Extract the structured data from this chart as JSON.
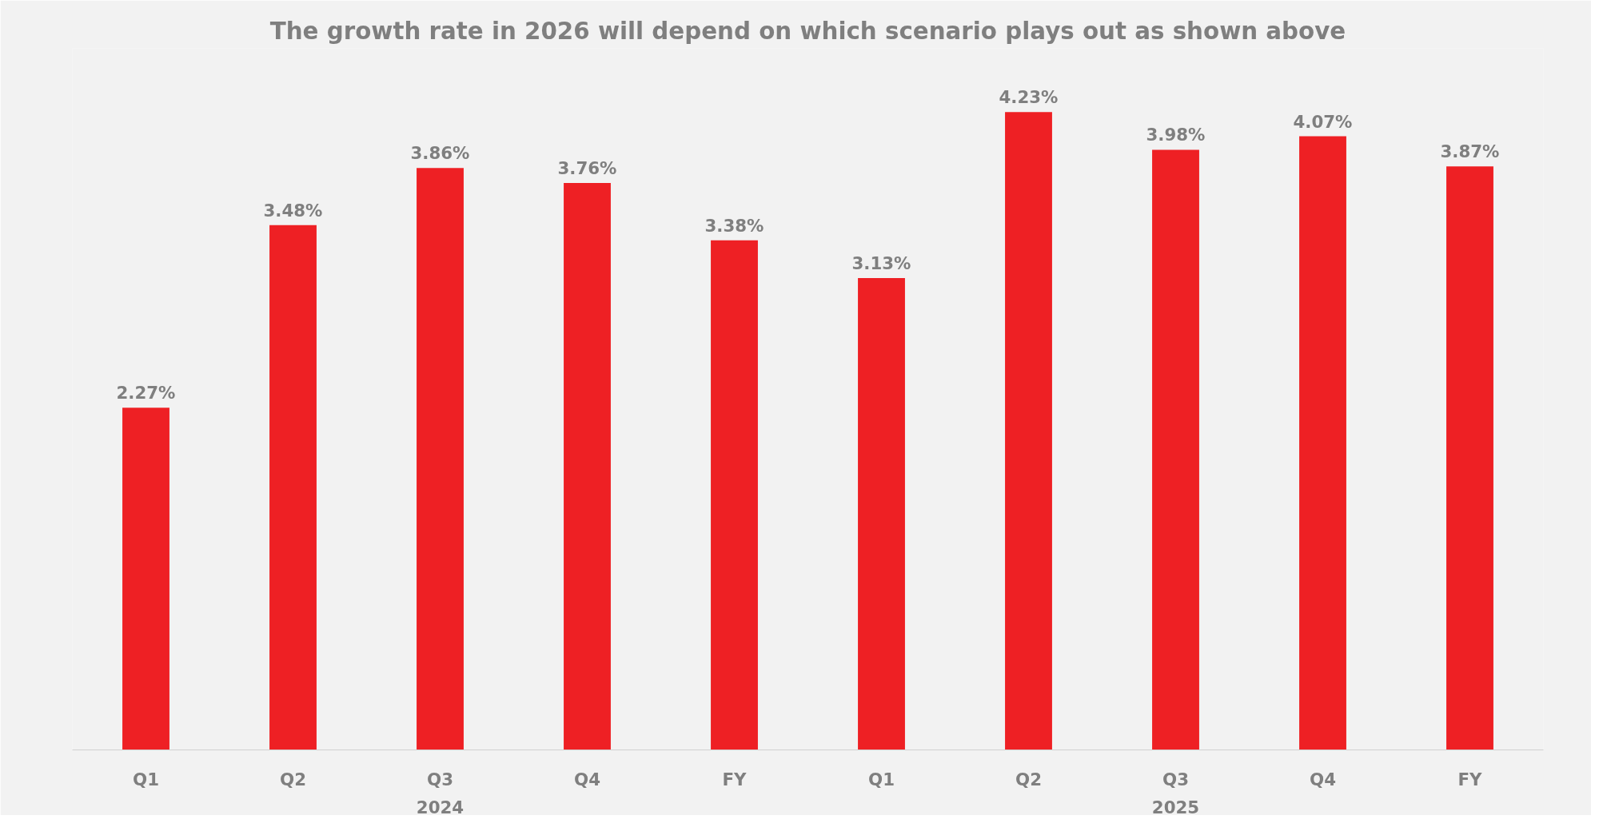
{
  "chart_data": {
    "type": "bar",
    "title": "The growth rate in 2026 will depend on which scenario plays out as shown above",
    "categories": [
      "Q1",
      "Q2",
      "Q3",
      "Q4",
      "FY",
      "Q1",
      "Q2",
      "Q3",
      "Q4",
      "FY"
    ],
    "values": [
      2.27,
      3.48,
      3.86,
      3.76,
      3.38,
      3.13,
      4.23,
      3.98,
      4.07,
      3.87
    ],
    "value_labels": [
      "2.27%",
      "3.48%",
      "3.86%",
      "3.76%",
      "3.38%",
      "3.13%",
      "4.23%",
      "3.98%",
      "4.07%",
      "3.87%"
    ],
    "color": "#ee2024",
    "annotations": [
      "2024",
      "2025"
    ],
    "grid": false
  }
}
